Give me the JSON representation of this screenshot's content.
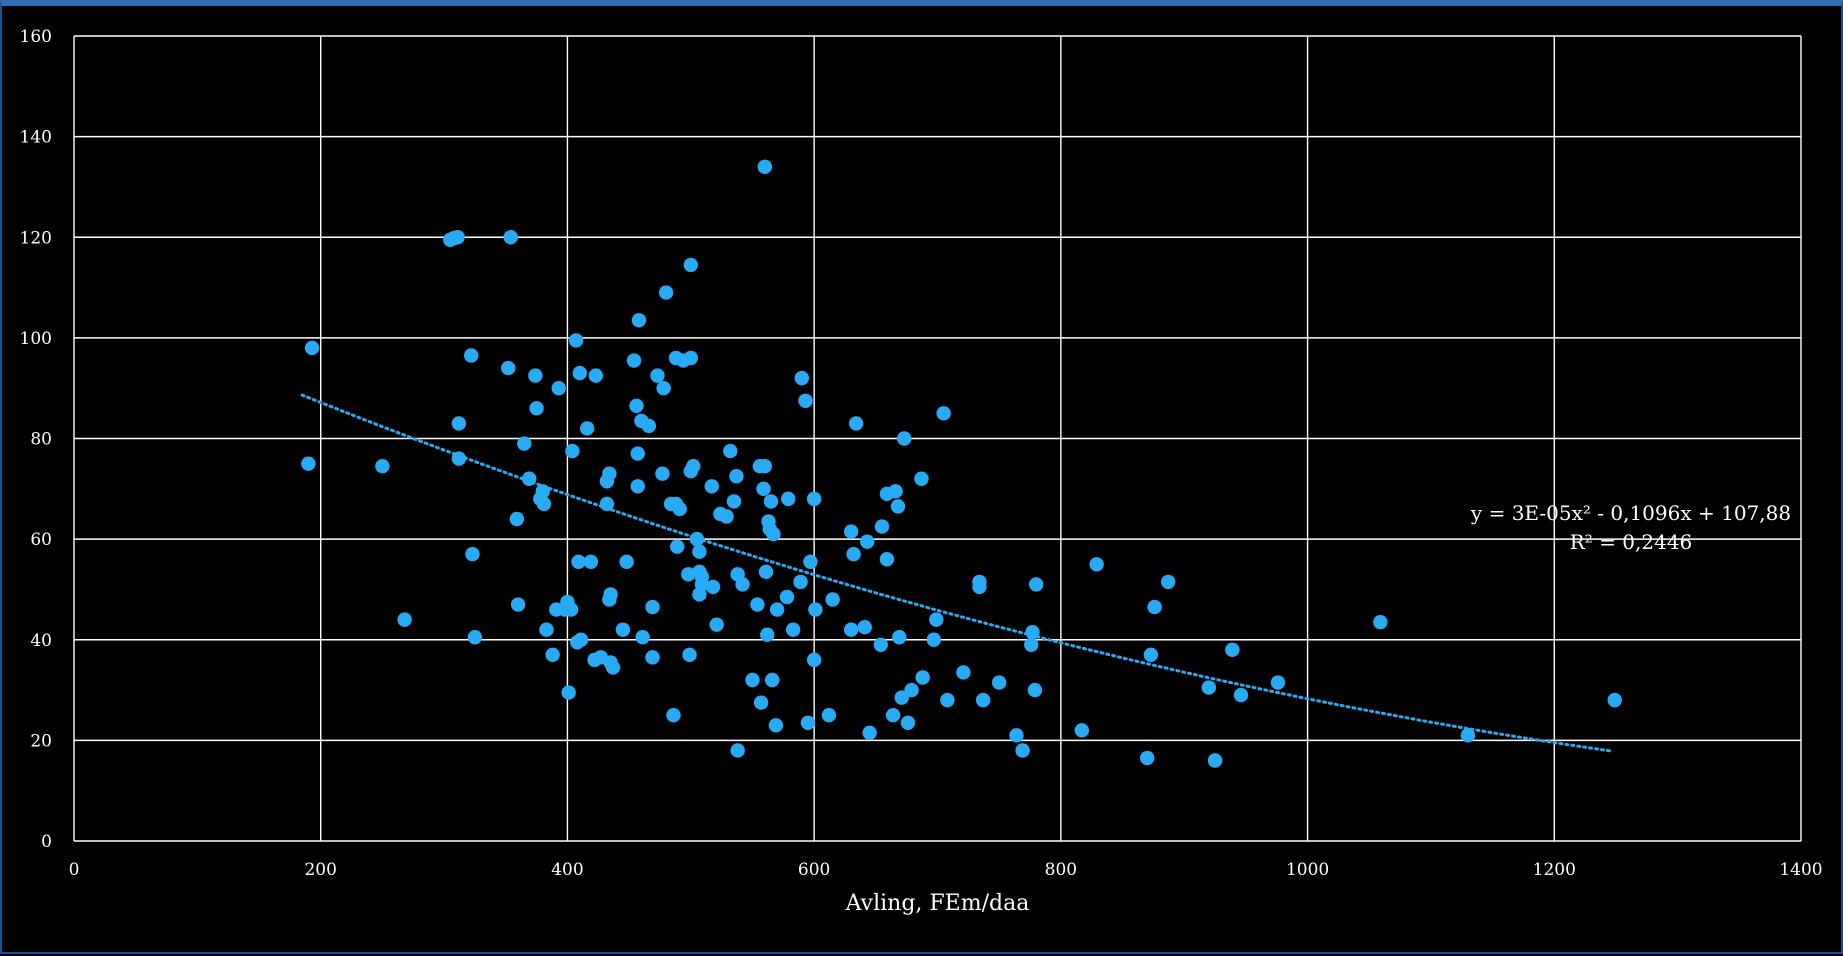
{
  "chart_data": {
    "type": "scatter",
    "title": "",
    "xlabel": "Avling, FEm/daa",
    "ylabel": "",
    "xlim": [
      0,
      1400
    ],
    "ylim": [
      0,
      160
    ],
    "x_ticks": [
      "0",
      "200",
      "400",
      "600",
      "800",
      "1000",
      "1200",
      "1400"
    ],
    "y_ticks": [
      "0",
      "20",
      "40",
      "60",
      "80",
      "100",
      "120",
      "140",
      "160"
    ],
    "grid": true,
    "colors": {
      "points": "#29aaf4",
      "trendline": "#29aaf4",
      "background": "#000000",
      "grid": "#ffffff"
    },
    "trendline": {
      "type": "polynomial-2",
      "equation": "y = 3E-05x² - 0,1096x + 107,88",
      "r_squared": "R² = 0,2446",
      "coefficients": {
        "a": 3e-05,
        "b": -0.1096,
        "c": 107.88
      },
      "x_range": [
        185,
        1245
      ]
    },
    "points": [
      [
        190,
        75
      ],
      [
        193,
        98
      ],
      [
        250,
        74.5
      ],
      [
        268,
        44
      ],
      [
        305,
        119.5
      ],
      [
        308,
        119.8
      ],
      [
        311,
        120
      ],
      [
        312,
        76
      ],
      [
        312,
        83
      ],
      [
        322,
        96.5
      ],
      [
        323,
        57
      ],
      [
        325,
        40.5
      ],
      [
        352,
        94
      ],
      [
        354,
        120
      ],
      [
        359,
        64
      ],
      [
        360,
        47
      ],
      [
        365,
        79
      ],
      [
        369,
        72
      ],
      [
        374,
        92.5
      ],
      [
        375,
        86
      ],
      [
        378,
        68
      ],
      [
        380,
        69.5
      ],
      [
        381,
        67
      ],
      [
        383,
        42
      ],
      [
        388,
        37
      ],
      [
        391,
        46
      ],
      [
        393,
        90
      ],
      [
        398,
        46
      ],
      [
        400,
        47.5
      ],
      [
        401,
        29.5
      ],
      [
        403,
        46
      ],
      [
        404,
        77.5
      ],
      [
        407,
        99.5
      ],
      [
        408,
        39.5
      ],
      [
        409,
        55.5
      ],
      [
        410,
        93
      ],
      [
        411,
        40
      ],
      [
        416,
        82
      ],
      [
        419,
        55.5
      ],
      [
        422,
        36
      ],
      [
        423,
        92.5
      ],
      [
        427,
        36.5
      ],
      [
        432,
        71.5
      ],
      [
        432,
        67
      ],
      [
        434,
        73
      ],
      [
        434,
        48
      ],
      [
        435,
        49
      ],
      [
        435,
        35.5
      ],
      [
        437,
        34.5
      ],
      [
        445,
        42
      ],
      [
        448,
        55.5
      ],
      [
        454,
        95.5
      ],
      [
        456,
        86.5
      ],
      [
        457,
        77
      ],
      [
        457,
        70.5
      ],
      [
        458,
        103.5
      ],
      [
        460,
        83.5
      ],
      [
        461,
        40.5
      ],
      [
        466,
        82.5
      ],
      [
        469,
        46.5
      ],
      [
        469,
        36.5
      ],
      [
        473,
        92.5
      ],
      [
        477,
        73
      ],
      [
        478,
        90
      ],
      [
        480,
        109
      ],
      [
        484,
        67
      ],
      [
        486,
        25
      ],
      [
        488,
        67
      ],
      [
        488,
        96
      ],
      [
        489,
        58.5
      ],
      [
        491,
        66
      ],
      [
        494,
        95.5
      ],
      [
        498,
        53
      ],
      [
        499,
        37
      ],
      [
        500,
        96
      ],
      [
        500,
        114.5
      ],
      [
        500,
        73.5
      ],
      [
        502,
        74.5
      ],
      [
        505,
        60
      ],
      [
        507,
        57.5
      ],
      [
        507,
        53.5
      ],
      [
        507,
        49
      ],
      [
        509,
        51
      ],
      [
        509,
        52.5
      ],
      [
        517,
        70.5
      ],
      [
        518,
        50.5
      ],
      [
        521,
        43
      ],
      [
        524,
        65
      ],
      [
        529,
        64.5
      ],
      [
        532,
        77.5
      ],
      [
        535,
        67.5
      ],
      [
        537,
        72.5
      ],
      [
        538,
        53
      ],
      [
        538,
        18
      ],
      [
        542,
        51
      ],
      [
        550,
        32
      ],
      [
        554,
        47
      ],
      [
        556,
        74.5
      ],
      [
        557,
        27.5
      ],
      [
        559,
        70
      ],
      [
        560,
        74.5
      ],
      [
        560,
        134
      ],
      [
        561,
        53.5
      ],
      [
        562,
        41
      ],
      [
        563,
        63.5
      ],
      [
        564,
        62
      ],
      [
        565,
        67.5
      ],
      [
        566,
        32
      ],
      [
        567,
        61
      ],
      [
        569,
        23
      ],
      [
        570,
        46
      ],
      [
        578,
        48.5
      ],
      [
        579,
        68
      ],
      [
        583,
        42
      ],
      [
        589,
        51.5
      ],
      [
        590,
        92
      ],
      [
        593,
        87.5
      ],
      [
        595,
        23.5
      ],
      [
        597,
        55.5
      ],
      [
        600,
        68
      ],
      [
        600,
        36
      ],
      [
        601,
        46
      ],
      [
        612,
        25
      ],
      [
        615,
        48
      ],
      [
        630,
        42
      ],
      [
        630,
        61.5
      ],
      [
        632,
        57
      ],
      [
        634,
        83
      ],
      [
        641,
        42.5
      ],
      [
        643,
        59.5
      ],
      [
        645,
        21.5
      ],
      [
        654,
        39
      ],
      [
        655,
        62.5
      ],
      [
        659,
        69
      ],
      [
        659,
        56
      ],
      [
        664,
        25
      ],
      [
        666,
        69.5
      ],
      [
        668,
        66.5
      ],
      [
        669,
        40.5
      ],
      [
        671,
        28.5
      ],
      [
        673,
        80
      ],
      [
        676,
        23.5
      ],
      [
        679,
        30
      ],
      [
        687,
        72
      ],
      [
        688,
        32.5
      ],
      [
        697,
        40
      ],
      [
        699,
        44
      ],
      [
        705,
        85
      ],
      [
        708,
        28
      ],
      [
        721,
        33.5
      ],
      [
        734,
        51.5
      ],
      [
        734,
        50.5
      ],
      [
        737,
        28
      ],
      [
        750,
        31.5
      ],
      [
        764,
        21
      ],
      [
        769,
        18
      ],
      [
        776,
        39
      ],
      [
        777,
        41.5
      ],
      [
        779,
        30
      ],
      [
        780,
        51
      ],
      [
        817,
        22
      ],
      [
        829,
        55
      ],
      [
        870,
        16.5
      ],
      [
        873,
        37
      ],
      [
        876,
        46.5
      ],
      [
        887,
        51.5
      ],
      [
        920,
        30.5
      ],
      [
        925,
        16
      ],
      [
        939,
        38
      ],
      [
        946,
        29
      ],
      [
        976,
        31.5
      ],
      [
        1059,
        43.5
      ],
      [
        1130,
        21
      ],
      [
        1249,
        28
      ]
    ]
  }
}
